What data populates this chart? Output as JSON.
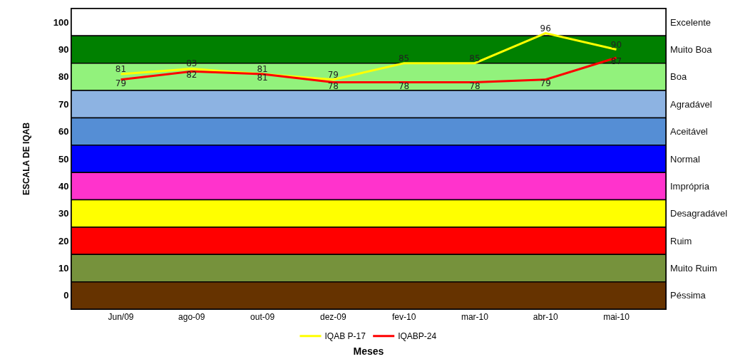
{
  "chart_data": {
    "type": "line",
    "xlabel": "Meses",
    "ylabel": "ESCALA DE IQAB",
    "categories": [
      "Jun/09",
      "ago-09",
      "out-09",
      "dez-09",
      "fev-10",
      "mar-10",
      "abr-10",
      "mai-10"
    ],
    "series": [
      {
        "name": "IQAB P-17",
        "color": "#ffff00",
        "values": [
          81,
          83,
          81,
          79,
          85,
          85,
          96,
          90
        ]
      },
      {
        "name": "IQABP-24",
        "color": "#ff0000",
        "values": [
          79,
          82,
          81,
          78,
          78,
          78,
          79,
          87
        ]
      }
    ],
    "ylim": [
      -5,
      105
    ],
    "yticks": [
      0,
      10,
      20,
      30,
      40,
      50,
      60,
      70,
      80,
      90,
      100
    ],
    "bands": [
      {
        "axis": "y",
        "from": 95,
        "to": 105,
        "label": "Excelente",
        "color": "#ffffff"
      },
      {
        "axis": "y",
        "from": 85,
        "to": 95,
        "label": "Muito Boa",
        "color": "#008000"
      },
      {
        "axis": "y",
        "from": 75,
        "to": 85,
        "label": "Boa",
        "color": "#92f27c"
      },
      {
        "axis": "y",
        "from": 65,
        "to": 75,
        "label": "Agradável",
        "color": "#8db3e2"
      },
      {
        "axis": "y",
        "from": 55,
        "to": 65,
        "label": "Aceitável",
        "color": "#558ed5"
      },
      {
        "axis": "y",
        "from": 45,
        "to": 55,
        "label": "Normal",
        "color": "#0000ff"
      },
      {
        "axis": "y",
        "from": 35,
        "to": 45,
        "label": "Imprópria",
        "color": "#ff33cc"
      },
      {
        "axis": "y",
        "from": 25,
        "to": 35,
        "label": "Desagradável",
        "color": "#ffff00"
      },
      {
        "axis": "y",
        "from": 15,
        "to": 25,
        "label": "Ruim",
        "color": "#ff0000"
      },
      {
        "axis": "y",
        "from": 5,
        "to": 15,
        "label": "Muito Ruim",
        "color": "#76923c"
      },
      {
        "axis": "y",
        "from": -5,
        "to": 5,
        "label": "Péssima",
        "color": "#663300"
      }
    ],
    "data_labels": true,
    "grid": false,
    "legend": "bottom",
    "marker": "none",
    "line_style": "solid"
  }
}
